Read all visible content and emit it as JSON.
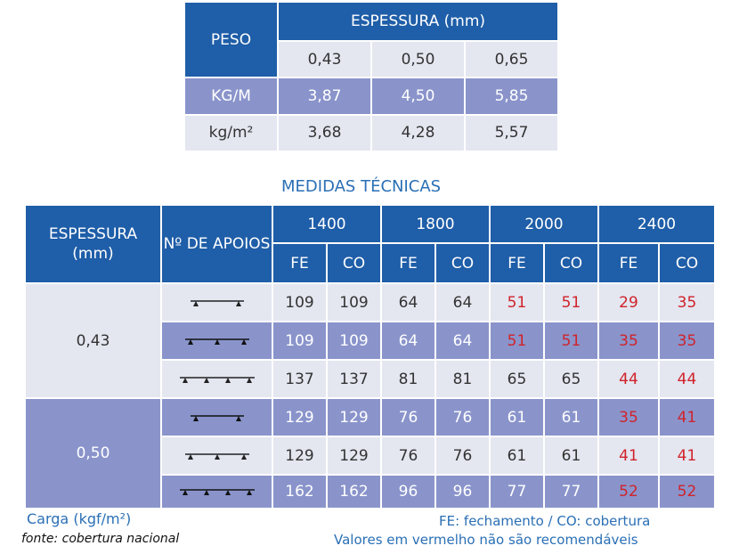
{
  "weight_table": {
    "corner": "PESO",
    "header": "ESPESSURA (mm)",
    "thicknesses": [
      "0,43",
      "0,50",
      "0,65"
    ],
    "rows": [
      {
        "label": "KG/M",
        "values": [
          "3,87",
          "4,50",
          "5,85"
        ]
      },
      {
        "label": "kg/m²",
        "values": [
          "3,68",
          "4,28",
          "5,57"
        ]
      }
    ]
  },
  "section_title": "MEDIDAS TÉCNICAS",
  "main_table": {
    "header_thickness": "ESPESSURA (mm)",
    "header_supports": "Nº DE APOIOS",
    "spans": [
      "1400",
      "1800",
      "2000",
      "2400"
    ],
    "sub": [
      "FE",
      "CO",
      "FE",
      "CO",
      "FE",
      "CO",
      "FE",
      "CO"
    ],
    "groups": [
      {
        "thickness": "0,43",
        "rows": [
          {
            "values": [
              "109",
              "109",
              "64",
              "64",
              "51",
              "51",
              "29",
              "35"
            ],
            "colors": [
              "#333",
              "#333",
              "#333",
              "#333",
              "#d0232a",
              "#d0232a",
              "#d0232a",
              "#d0232a"
            ]
          },
          {
            "values": [
              "109",
              "109",
              "64",
              "64",
              "51",
              "51",
              "35",
              "35"
            ],
            "colors": [
              "#fff",
              "#fff",
              "#fff",
              "#fff",
              "#d0232a",
              "#d0232a",
              "#d0232a",
              "#d0232a"
            ]
          },
          {
            "values": [
              "137",
              "137",
              "81",
              "81",
              "65",
              "65",
              "44",
              "44"
            ],
            "colors": [
              "#333",
              "#333",
              "#333",
              "#333",
              "#333",
              "#333",
              "#d0232a",
              "#d0232a"
            ]
          }
        ]
      },
      {
        "thickness": "0,50",
        "rows": [
          {
            "values": [
              "129",
              "129",
              "76",
              "76",
              "61",
              "61",
              "35",
              "41"
            ],
            "colors": [
              "#fff",
              "#fff",
              "#fff",
              "#fff",
              "#fff",
              "#fff",
              "#d0232a",
              "#d0232a"
            ]
          },
          {
            "values": [
              "129",
              "129",
              "76",
              "76",
              "61",
              "61",
              "41",
              "41"
            ],
            "colors": [
              "#333",
              "#333",
              "#333",
              "#333",
              "#333",
              "#333",
              "#d0232a",
              "#d0232a"
            ]
          },
          {
            "values": [
              "162",
              "162",
              "96",
              "96",
              "77",
              "77",
              "52",
              "52"
            ],
            "colors": [
              "#fff",
              "#fff",
              "#fff",
              "#fff",
              "#fff",
              "#fff",
              "#d0232a",
              "#d0232a"
            ]
          }
        ]
      }
    ]
  },
  "footer": {
    "load": "Carga (kgf/m²)",
    "source": "fonte: cobertura nacional",
    "legend": "FE: fechamento / CO: cobertura",
    "note": "Valores em vermelho não são recomendáveis"
  }
}
